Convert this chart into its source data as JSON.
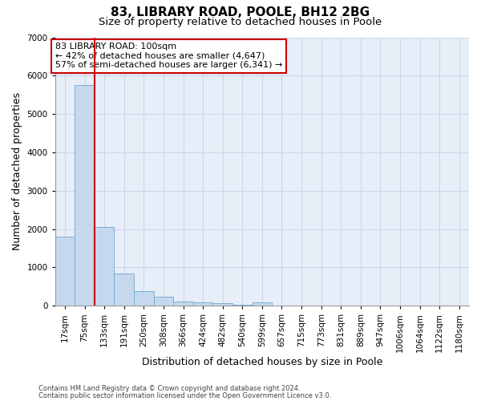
{
  "title": "83, LIBRARY ROAD, POOLE, BH12 2BG",
  "subtitle": "Size of property relative to detached houses in Poole",
  "xlabel": "Distribution of detached houses by size in Poole",
  "ylabel": "Number of detached properties",
  "bins": [
    "17sqm",
    "75sqm",
    "133sqm",
    "191sqm",
    "250sqm",
    "308sqm",
    "366sqm",
    "424sqm",
    "482sqm",
    "540sqm",
    "599sqm",
    "657sqm",
    "715sqm",
    "773sqm",
    "831sqm",
    "889sqm",
    "947sqm",
    "1006sqm",
    "1064sqm",
    "1122sqm",
    "1180sqm"
  ],
  "values": [
    1800,
    5750,
    2060,
    830,
    380,
    240,
    110,
    95,
    60,
    30,
    90,
    5,
    3,
    2,
    1,
    1,
    1,
    0,
    0,
    0,
    0
  ],
  "bar_color": "#c5d8ed",
  "bar_edge_color": "#7bafd4",
  "vline_color": "#cc0000",
  "annotation_text": "83 LIBRARY ROAD: 100sqm\n← 42% of detached houses are smaller (4,647)\n57% of semi-detached houses are larger (6,341) →",
  "annotation_box_color": "#ffffff",
  "annotation_box_edge": "#cc0000",
  "ylim": [
    0,
    7000
  ],
  "yticks": [
    0,
    1000,
    2000,
    3000,
    4000,
    5000,
    6000,
    7000
  ],
  "grid_color": "#ccd6e8",
  "background_color": "#e8eef8",
  "footer1": "Contains HM Land Registry data © Crown copyright and database right 2024.",
  "footer2": "Contains public sector information licensed under the Open Government Licence v3.0.",
  "title_fontsize": 11,
  "subtitle_fontsize": 9.5,
  "tick_fontsize": 7.5,
  "ylabel_fontsize": 9,
  "xlabel_fontsize": 9,
  "footer_fontsize": 6,
  "ann_fontsize": 8
}
